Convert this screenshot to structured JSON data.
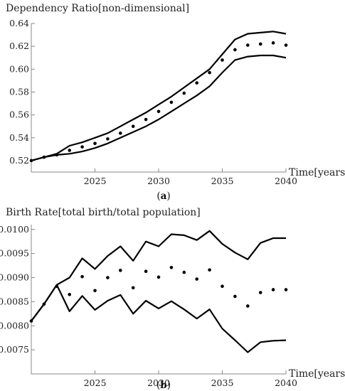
{
  "chart_data": [
    {
      "type": "line",
      "panel_label": "a",
      "ylabel": "Dependency Ratio[non-dimensional]",
      "xlabel": "Time[years]",
      "xlim": [
        2020,
        2040
      ],
      "ylim": [
        0.51,
        0.64
      ],
      "x_ticks": [
        2025,
        2030,
        2035,
        2040
      ],
      "y_ticks": [
        0.52,
        0.54,
        0.56,
        0.58,
        0.6,
        0.62,
        0.64
      ],
      "x_tick_labels": [
        "2025",
        "2030",
        "2035",
        "2040"
      ],
      "y_tick_labels": [
        "0.52",
        "0.54",
        "0.56",
        "0.58",
        "0.60",
        "0.62",
        "0.64"
      ],
      "grid": false,
      "series": [
        {
          "style": "line",
          "x": [
            2020,
            2021,
            2022,
            2023,
            2024,
            2025,
            2026,
            2027,
            2028,
            2029,
            2030,
            2031,
            2032,
            2033,
            2034,
            2035,
            2036,
            2037,
            2038,
            2039,
            2040
          ],
          "values": [
            0.52,
            0.523,
            0.526,
            0.533,
            0.536,
            0.54,
            0.544,
            0.55,
            0.556,
            0.562,
            0.569,
            0.576,
            0.584,
            0.592,
            0.6,
            0.613,
            0.626,
            0.631,
            0.632,
            0.633,
            0.631
          ]
        },
        {
          "style": "line",
          "x": [
            2020,
            2021,
            2022,
            2023,
            2024,
            2025,
            2026,
            2027,
            2028,
            2029,
            2030,
            2031,
            2032,
            2033,
            2034,
            2035,
            2036,
            2037,
            2038,
            2039,
            2040
          ],
          "values": [
            0.52,
            0.523,
            0.525,
            0.526,
            0.528,
            0.531,
            0.535,
            0.54,
            0.545,
            0.55,
            0.556,
            0.563,
            0.57,
            0.577,
            0.585,
            0.597,
            0.608,
            0.611,
            0.612,
            0.612,
            0.61
          ]
        },
        {
          "style": "dots",
          "x": [
            2020,
            2021,
            2022,
            2023,
            2024,
            2025,
            2026,
            2027,
            2028,
            2029,
            2030,
            2031,
            2032,
            2033,
            2034,
            2035,
            2036,
            2037,
            2038,
            2039,
            2040
          ],
          "values": [
            0.52,
            0.523,
            0.525,
            0.529,
            0.532,
            0.535,
            0.539,
            0.544,
            0.55,
            0.556,
            0.563,
            0.571,
            0.579,
            0.588,
            0.597,
            0.608,
            0.617,
            0.621,
            0.622,
            0.623,
            0.621
          ]
        }
      ]
    },
    {
      "type": "line",
      "panel_label": "b",
      "ylabel": "Birth Rate[total birth/total population]",
      "xlabel": "Time[years]",
      "xlim": [
        2020,
        2040
      ],
      "ylim": [
        0.007,
        0.0101
      ],
      "x_ticks": [
        2025,
        2030,
        2035,
        2040
      ],
      "y_ticks": [
        0.0075,
        0.008,
        0.0085,
        0.009,
        0.0095,
        0.01
      ],
      "x_tick_labels": [
        "2025",
        "2030",
        "2035",
        "2040"
      ],
      "y_tick_labels": [
        "0.0075",
        "0.0080",
        "0.0085",
        "0.0090",
        "0.0095",
        "0.0100"
      ],
      "grid": false,
      "series": [
        {
          "style": "line",
          "x": [
            2020,
            2021,
            2022,
            2023,
            2024,
            2025,
            2026,
            2027,
            2028,
            2029,
            2030,
            2031,
            2032,
            2033,
            2034,
            2035,
            2036,
            2037,
            2038,
            2039,
            2040
          ],
          "values": [
            0.0081,
            0.00845,
            0.00885,
            0.009,
            0.0094,
            0.00918,
            0.00945,
            0.00965,
            0.00935,
            0.00975,
            0.00965,
            0.0099,
            0.00988,
            0.00978,
            0.00997,
            0.0097,
            0.00952,
            0.00938,
            0.00972,
            0.00982,
            0.00982
          ]
        },
        {
          "style": "line",
          "x": [
            2020,
            2021,
            2022,
            2023,
            2024,
            2025,
            2026,
            2027,
            2028,
            2029,
            2030,
            2031,
            2032,
            2033,
            2034,
            2035,
            2036,
            2037,
            2038,
            2039,
            2040
          ],
          "values": [
            0.0081,
            0.00845,
            0.00885,
            0.0083,
            0.00862,
            0.00833,
            0.00852,
            0.00864,
            0.00825,
            0.00852,
            0.00836,
            0.00851,
            0.00834,
            0.00815,
            0.00834,
            0.00794,
            0.0077,
            0.00745,
            0.00766,
            0.00769,
            0.0077
          ]
        },
        {
          "style": "dots",
          "x": [
            2020,
            2021,
            2022,
            2023,
            2024,
            2025,
            2026,
            2027,
            2028,
            2029,
            2030,
            2031,
            2032,
            2033,
            2034,
            2035,
            2036,
            2037,
            2038,
            2039,
            2040
          ],
          "values": [
            0.0081,
            0.00845,
            0.00882,
            0.00865,
            0.00902,
            0.00873,
            0.009,
            0.00915,
            0.00879,
            0.00913,
            0.00901,
            0.00921,
            0.00911,
            0.00897,
            0.00916,
            0.00882,
            0.00861,
            0.00841,
            0.00869,
            0.00875,
            0.00875
          ]
        }
      ]
    }
  ]
}
